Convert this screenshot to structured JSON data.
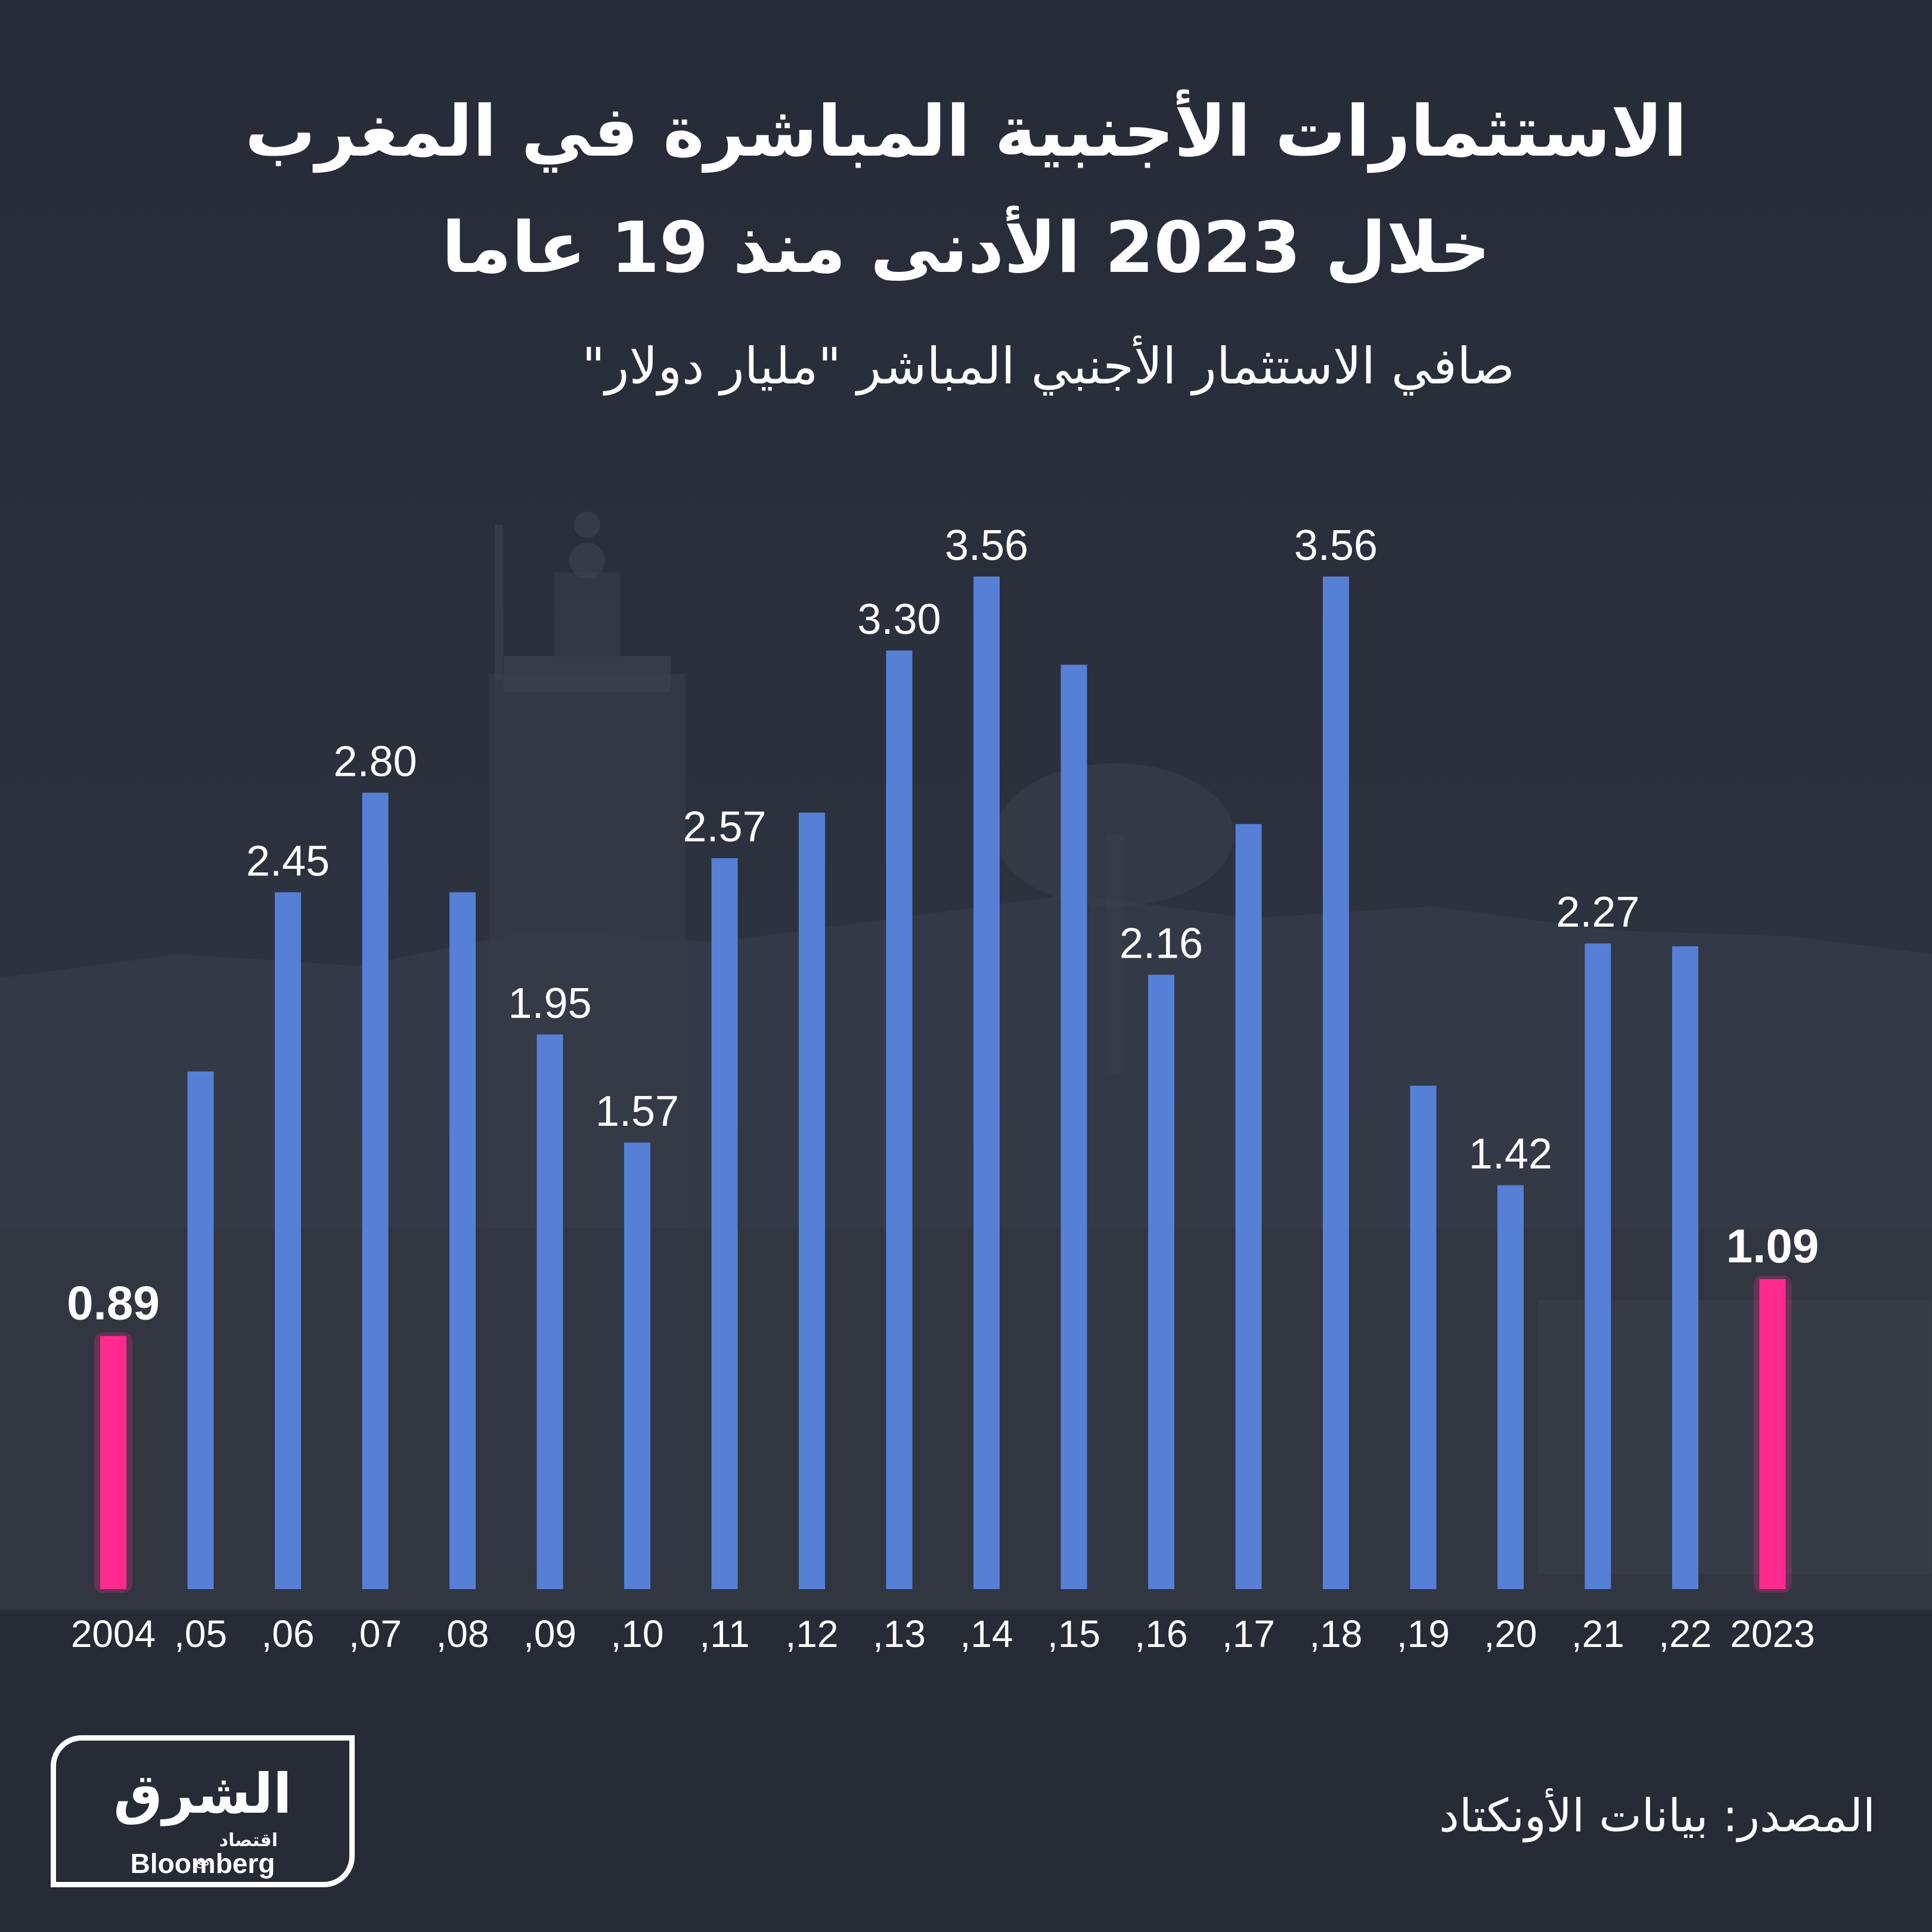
{
  "title_line1": "الاستثمارات الأجنبية المباشرة في المغرب",
  "title_line2": "خلال 2023 الأدنى منذ 19 عاما",
  "subtitle": "صافي الاستثمار الأجنبي المباشر \"مليار دولار\"",
  "source": "المصدر: بيانات الأونكتاد",
  "logo": {
    "arabic": "الشرق",
    "sub": "اقتصاد",
    "with": "مع",
    "english": "Bloomberg"
  },
  "colors": {
    "background": "#252a36",
    "bar": "#5580d6",
    "highlight": "#ff2a8d",
    "text": "#ffffff"
  },
  "chart_data": {
    "type": "bar",
    "categories": [
      "2004",
      ",05",
      ",06",
      ",07",
      ",08",
      ",09",
      ",10",
      ",11",
      ",12",
      ",13",
      ",14",
      ",15",
      ",16",
      ",17",
      ",18",
      ",19",
      ",20",
      ",21",
      ",22",
      "2023"
    ],
    "values": [
      0.89,
      1.82,
      2.45,
      2.8,
      2.45,
      1.95,
      1.57,
      2.57,
      2.73,
      3.3,
      3.56,
      3.25,
      2.16,
      2.69,
      3.56,
      1.77,
      1.42,
      2.27,
      2.26,
      1.09
    ],
    "data_labels": [
      "0.89",
      "",
      "2.45",
      "2.80",
      "",
      "1.95",
      "1.57",
      "2.57",
      "",
      "3.30",
      "3.56",
      "",
      "2.16",
      "",
      "3.56",
      "",
      "1.42",
      "2.27",
      "",
      "1.09"
    ],
    "highlight": [
      "2004",
      "2023"
    ],
    "ylim": [
      0,
      4
    ],
    "grid": false,
    "legend": "none"
  }
}
